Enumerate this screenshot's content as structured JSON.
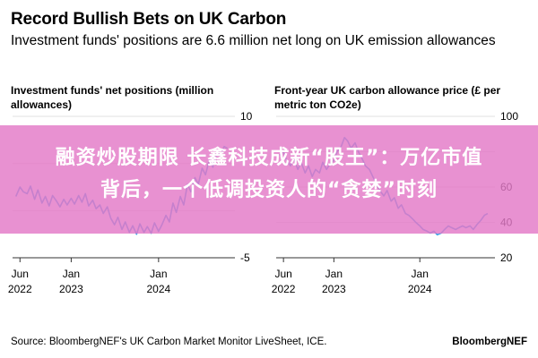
{
  "header": {
    "title": "Record Bullish Bets on UK Carbon",
    "subtitle": "Investment funds' positions are 6.6 million net long on UK emission allowances"
  },
  "overlay": {
    "banner_line1": "融资炒股期限 长鑫科技成新“股王”：万亿市值",
    "banner_line2": "背后，一个低调投资人的“贪婪”时刻",
    "color": "#e379c7"
  },
  "footer": {
    "source": "Source: BloombergNEF's UK Carbon Market Monitor LiveSheet, ICE.",
    "brand": "BloombergNEF"
  },
  "colors": {
    "line": "#3fa0e6",
    "axis": "#333333",
    "grid": "#e0e0e0"
  },
  "chart_data": [
    {
      "type": "line",
      "title": "Investment funds' net positions (million allowances)",
      "xlabel": "",
      "ylabel": "",
      "ylim": [
        -5,
        10
      ],
      "yticks": [
        10,
        "",
        "",
        -5
      ],
      "yaxis": "right",
      "xlim": [
        "2022-05-01",
        "2024-11-15"
      ],
      "xtick_labels": [
        {
          "date": "2022-06-01",
          "l1": "Jun",
          "l2": "2022"
        },
        {
          "date": "2023-01-01",
          "l1": "Jan",
          "l2": "2023"
        },
        {
          "date": "2024-01-01",
          "l1": "Jan",
          "l2": "2024"
        }
      ],
      "series": [
        {
          "x": [
            "2022-05-15",
            "2022-06-01",
            "2022-06-15",
            "2022-07-01",
            "2022-07-15",
            "2022-08-01",
            "2022-08-15",
            "2022-09-01",
            "2022-09-15",
            "2022-10-01",
            "2022-10-15",
            "2022-11-01",
            "2022-11-15",
            "2022-12-01",
            "2022-12-15",
            "2023-01-01",
            "2023-01-15",
            "2023-02-01",
            "2023-02-15",
            "2023-03-01",
            "2023-03-15",
            "2023-04-01",
            "2023-04-15",
            "2023-05-01",
            "2023-05-15",
            "2023-06-01",
            "2023-06-15",
            "2023-07-01",
            "2023-07-15",
            "2023-08-01",
            "2023-08-15",
            "2023-09-01",
            "2023-09-15",
            "2023-10-01",
            "2023-10-15",
            "2023-11-01",
            "2023-11-15",
            "2023-12-01",
            "2023-12-15",
            "2024-01-01",
            "2024-01-15",
            "2024-02-01",
            "2024-02-15",
            "2024-03-01",
            "2024-03-15",
            "2024-04-01",
            "2024-04-15",
            "2024-05-01",
            "2024-05-15",
            "2024-06-01",
            "2024-06-15",
            "2024-07-01",
            "2024-07-15",
            "2024-08-01",
            "2024-08-15",
            "2024-09-01",
            "2024-09-15",
            "2024-10-01",
            "2024-10-15"
          ],
          "y": [
            1.5,
            2.5,
            2.0,
            1.8,
            2.6,
            1.2,
            2.2,
            0.8,
            1.5,
            0.5,
            1.6,
            1.0,
            0.4,
            1.2,
            0.6,
            1.3,
            0.7,
            1.6,
            0.9,
            1.8,
            0.5,
            1.1,
            0.2,
            0.6,
            -0.3,
            0.4,
            -0.8,
            -1.5,
            -0.7,
            -2.0,
            -1.2,
            -2.3,
            -1.6,
            -2.5,
            -1.4,
            -2.3,
            -1.7,
            -2.4,
            -1.3,
            -2.2,
            -1.5,
            -0.5,
            -1.2,
            0.8,
            -0.2,
            1.5,
            0.6,
            2.8,
            2.0,
            3.5,
            2.8,
            4.5,
            3.8,
            5.5,
            4.6,
            6.2,
            5.8,
            6.8,
            6.6
          ]
        }
      ]
    },
    {
      "type": "line",
      "title": "Front-year UK carbon allowance price (£ per metric ton CO2e)",
      "xlabel": "",
      "ylabel": "",
      "ylim": [
        20,
        100
      ],
      "yticks": [
        100,
        "",
        60,
        40,
        20
      ],
      "yaxis": "right",
      "xlim": [
        "2022-05-01",
        "2024-11-15"
      ],
      "xtick_labels": [
        {
          "date": "2022-06-01",
          "l1": "Jun",
          "l2": "2022"
        },
        {
          "date": "2023-01-01",
          "l1": "Jan",
          "l2": "2023"
        },
        {
          "date": "2024-01-01",
          "l1": "Jan",
          "l2": "2024"
        }
      ],
      "series": [
        {
          "x": [
            "2022-05-15",
            "2022-06-01",
            "2022-06-15",
            "2022-07-01",
            "2022-07-15",
            "2022-08-01",
            "2022-08-15",
            "2022-09-01",
            "2022-09-15",
            "2022-10-01",
            "2022-10-15",
            "2022-11-01",
            "2022-11-15",
            "2022-12-01",
            "2022-12-15",
            "2023-01-01",
            "2023-01-15",
            "2023-02-01",
            "2023-02-15",
            "2023-03-01",
            "2023-03-15",
            "2023-04-01",
            "2023-04-15",
            "2023-05-01",
            "2023-05-15",
            "2023-06-01",
            "2023-06-15",
            "2023-07-01",
            "2023-07-15",
            "2023-08-01",
            "2023-08-15",
            "2023-09-01",
            "2023-09-15",
            "2023-10-01",
            "2023-10-15",
            "2023-11-01",
            "2023-11-15",
            "2023-12-01",
            "2023-12-15",
            "2024-01-01",
            "2024-01-15",
            "2024-02-01",
            "2024-02-15",
            "2024-03-01",
            "2024-03-15",
            "2024-04-01",
            "2024-04-15",
            "2024-05-01",
            "2024-05-15",
            "2024-06-01",
            "2024-06-15",
            "2024-07-01",
            "2024-07-15",
            "2024-08-01",
            "2024-08-15",
            "2024-09-01",
            "2024-09-15",
            "2024-10-01",
            "2024-10-15"
          ],
          "y": [
            78,
            80,
            75,
            72,
            76,
            70,
            74,
            68,
            72,
            66,
            70,
            68,
            74,
            70,
            73,
            75,
            80,
            83,
            88,
            86,
            82,
            85,
            80,
            76,
            72,
            70,
            66,
            62,
            58,
            55,
            58,
            52,
            54,
            48,
            50,
            45,
            44,
            42,
            40,
            38,
            36,
            35,
            34,
            35,
            33,
            34,
            36,
            38,
            37,
            36,
            37,
            38,
            37,
            38,
            36,
            39,
            41,
            44,
            45
          ]
        }
      ]
    }
  ]
}
